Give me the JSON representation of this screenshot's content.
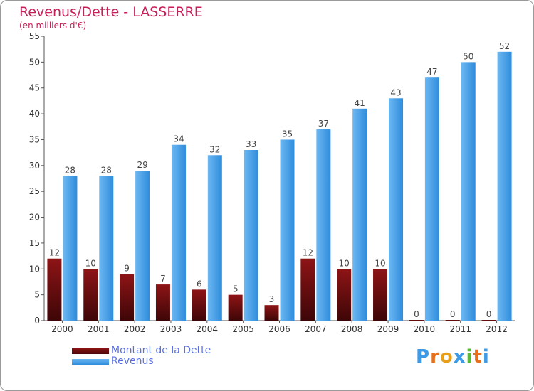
{
  "title": "Revenus/Dette - LASSERRE",
  "subtitle": "(en milliers d'€)",
  "colors": {
    "debt": "#7a0f12",
    "revenue": "#3d9ae6",
    "title": "#c81e5a",
    "legend_text": "#5a6fe0"
  },
  "chart_data": {
    "type": "bar",
    "title": "Revenus/Dette - LASSERRE",
    "ylabel": "(en milliers d'€)",
    "categories": [
      "2000",
      "2001",
      "2002",
      "2003",
      "2004",
      "2005",
      "2006",
      "2007",
      "2008",
      "2009",
      "2010",
      "2011",
      "2012"
    ],
    "series": [
      {
        "name": "Montant de la Dette",
        "values": [
          12,
          10,
          9,
          7,
          6,
          5,
          3,
          12,
          10,
          10,
          0,
          0,
          0
        ]
      },
      {
        "name": "Revenus",
        "values": [
          28,
          28,
          29,
          34,
          32,
          33,
          35,
          37,
          41,
          43,
          47,
          50,
          52
        ]
      }
    ],
    "ylim": [
      0,
      55
    ],
    "yticks": [
      0,
      5,
      10,
      15,
      20,
      25,
      30,
      35,
      40,
      45,
      50,
      55
    ],
    "grid": false,
    "legend": "bottom-left"
  },
  "legend": {
    "debt_label": "Montant de la Dette",
    "revenue_label": "Revenus"
  },
  "logo": {
    "text": "Proxiti",
    "letters": [
      "P",
      "r",
      "o",
      "x",
      "i",
      "t",
      "i"
    ]
  }
}
